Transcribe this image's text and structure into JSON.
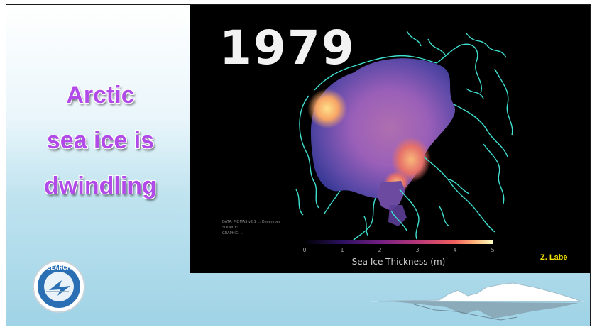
{
  "slide": {
    "title_lines": [
      "Arctic",
      "sea ice is",
      "dwindling"
    ]
  },
  "map": {
    "year": "1979",
    "meta_lines": [
      "DATA: PIOMAS v2.1 ... December",
      "SOURCE: ...",
      "GRAPHIC: ..."
    ],
    "colorbar": {
      "label": "Sea Ice Thickness (m)",
      "ticks": [
        "0",
        "1",
        "2",
        "3",
        "4",
        "5"
      ],
      "colors": [
        "#000004",
        "#2c115f",
        "#721f81",
        "#b73779",
        "#f1605d",
        "#feb078",
        "#fcfdbf"
      ]
    },
    "credit": "Z. Labe",
    "coastline_color": "#3fe0d0"
  },
  "logo": {
    "text": "SEARCH",
    "icon": "search-logo-icon"
  },
  "decor": {
    "icon": "iceberg-icon"
  }
}
